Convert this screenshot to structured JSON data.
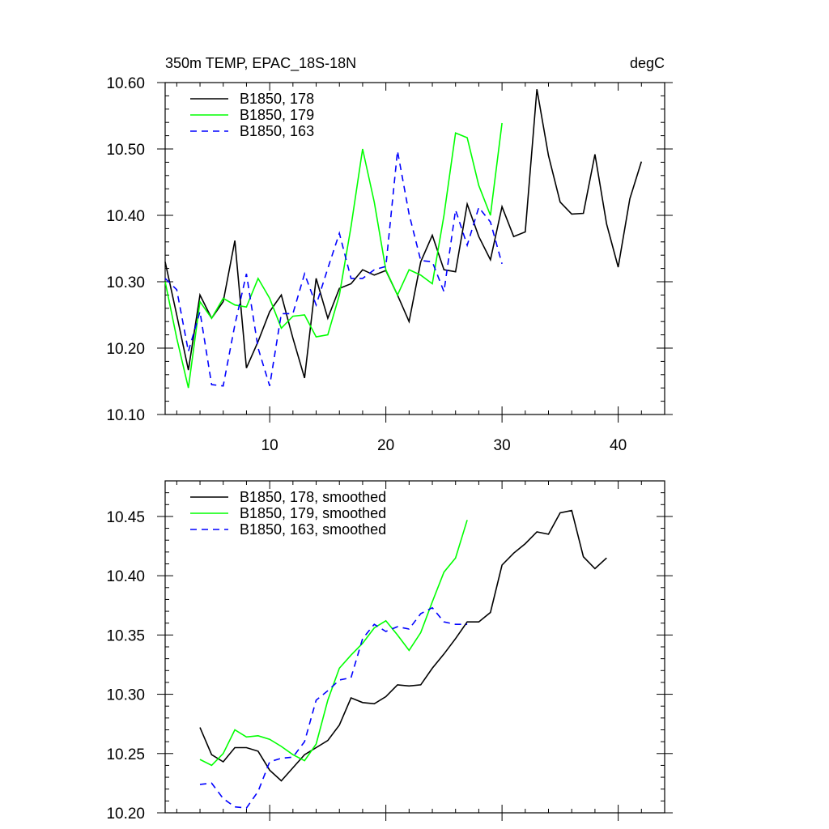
{
  "chart_data": [
    {
      "type": "line",
      "title_left": "350m TEMP, EPAC_18S-18N",
      "title_right": "degC",
      "xlim": [
        1,
        44
      ],
      "ylim": [
        10.1,
        10.6
      ],
      "y_ticks": [
        "10.10",
        "10.20",
        "10.30",
        "10.40",
        "10.50",
        "10.60"
      ],
      "x_ticks": [
        "10",
        "20",
        "30",
        "40"
      ],
      "grid": false,
      "legend_position": "top-left",
      "series": [
        {
          "name": "B1850, 178",
          "color": "#000000",
          "dash": "solid",
          "x": [
            1,
            2,
            3,
            4,
            5,
            6,
            7,
            8,
            9,
            10,
            11,
            12,
            13,
            14,
            15,
            16,
            17,
            18,
            19,
            20,
            21,
            22,
            23,
            24,
            25,
            26,
            27,
            28,
            29,
            30,
            31,
            32,
            33,
            34,
            35,
            36,
            37,
            38,
            39,
            40,
            41,
            42
          ],
          "values": [
            10.33,
            10.25,
            10.167,
            10.28,
            10.245,
            10.27,
            10.362,
            10.17,
            10.21,
            10.255,
            10.28,
            10.215,
            10.155,
            10.305,
            10.245,
            10.29,
            10.297,
            10.318,
            10.31,
            10.317,
            10.28,
            10.24,
            10.33,
            10.37,
            10.318,
            10.315,
            10.417,
            10.368,
            10.333,
            10.413,
            10.368,
            10.375,
            10.59,
            10.49,
            10.42,
            10.402,
            10.403,
            10.492,
            10.387,
            10.322,
            10.425,
            10.481
          ]
        },
        {
          "name": "B1850, 179",
          "color": "#00ff00",
          "dash": "solid",
          "x": [
            1,
            2,
            3,
            4,
            5,
            6,
            7,
            8,
            9,
            10,
            11,
            12,
            13,
            14,
            15,
            16,
            17,
            18,
            19,
            20,
            21,
            22,
            23,
            24,
            25,
            26,
            27,
            28,
            29,
            30
          ],
          "values": [
            10.3,
            10.215,
            10.14,
            10.27,
            10.245,
            10.275,
            10.265,
            10.262,
            10.305,
            10.275,
            10.23,
            10.248,
            10.25,
            10.217,
            10.22,
            10.28,
            10.383,
            10.5,
            10.42,
            10.318,
            10.28,
            10.318,
            10.31,
            10.297,
            10.4,
            10.524,
            10.517,
            10.445,
            10.4,
            10.539
          ]
        },
        {
          "name": "B1850, 163",
          "color": "#0000ff",
          "dash": "8,6",
          "x": [
            1,
            2,
            3,
            4,
            5,
            6,
            7,
            8,
            9,
            10,
            11,
            12,
            13,
            14,
            15,
            16,
            17,
            18,
            19,
            20,
            21,
            22,
            23,
            24,
            25,
            26,
            27,
            28,
            29,
            30
          ],
          "values": [
            10.305,
            10.288,
            10.195,
            10.255,
            10.145,
            10.143,
            10.235,
            10.312,
            10.2,
            10.143,
            10.252,
            10.252,
            10.312,
            10.265,
            10.32,
            10.373,
            10.305,
            10.305,
            10.318,
            10.323,
            10.497,
            10.402,
            10.332,
            10.33,
            10.285,
            10.408,
            10.355,
            10.412,
            10.39,
            10.327
          ]
        }
      ]
    },
    {
      "type": "line",
      "xlim": [
        1,
        44
      ],
      "ylim": [
        10.2,
        10.48
      ],
      "y_ticks": [
        "10.20",
        "10.25",
        "10.30",
        "10.35",
        "10.40",
        "10.45"
      ],
      "grid": false,
      "legend_position": "top-left",
      "series": [
        {
          "name": "B1850, 178, smoothed",
          "color": "#000000",
          "dash": "solid",
          "x": [
            4,
            5,
            6,
            7,
            8,
            9,
            10,
            11,
            12,
            13,
            14,
            15,
            16,
            17,
            18,
            19,
            20,
            21,
            22,
            23,
            24,
            25,
            26,
            27,
            28,
            29,
            30,
            31,
            32,
            33,
            34,
            35,
            36,
            37,
            38,
            39
          ],
          "values": [
            10.272,
            10.249,
            10.243,
            10.255,
            10.255,
            10.252,
            10.236,
            10.227,
            10.238,
            10.249,
            10.255,
            10.261,
            10.274,
            10.297,
            10.293,
            10.292,
            10.298,
            10.308,
            10.307,
            10.308,
            10.322,
            10.334,
            10.347,
            10.361,
            10.361,
            10.369,
            10.409,
            10.419,
            10.427,
            10.437,
            10.435,
            10.453,
            10.455,
            10.416,
            10.406,
            10.415
          ]
        },
        {
          "name": "B1850, 179, smoothed",
          "color": "#00ff00",
          "dash": "solid",
          "x": [
            4,
            5,
            6,
            7,
            8,
            9,
            10,
            11,
            12,
            13,
            14,
            15,
            16,
            17,
            18,
            19,
            20,
            21,
            22,
            23,
            24,
            25,
            26,
            27
          ],
          "values": [
            10.245,
            10.24,
            10.25,
            10.27,
            10.264,
            10.265,
            10.262,
            10.256,
            10.249,
            10.244,
            10.258,
            10.295,
            10.322,
            10.333,
            10.343,
            10.356,
            10.362,
            10.35,
            10.337,
            10.352,
            10.378,
            10.403,
            10.415,
            10.447
          ]
        },
        {
          "name": "B1850, 163, smoothed",
          "color": "#0000ff",
          "dash": "8,6",
          "x": [
            4,
            5,
            6,
            7,
            8,
            9,
            10,
            11,
            12,
            13,
            14,
            15,
            16,
            17,
            18,
            19,
            20,
            21,
            22,
            23,
            24,
            25,
            26,
            27
          ],
          "values": [
            10.224,
            10.225,
            10.212,
            10.205,
            10.204,
            10.218,
            10.243,
            10.246,
            10.247,
            10.26,
            10.295,
            10.303,
            10.312,
            10.314,
            10.347,
            10.359,
            10.353,
            10.357,
            10.355,
            10.368,
            10.373,
            10.361,
            10.359,
            10.359
          ]
        }
      ]
    }
  ]
}
